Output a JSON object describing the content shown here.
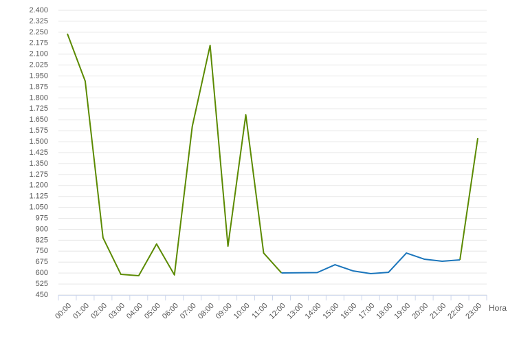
{
  "chart_data": {
    "type": "line",
    "x_label": "Hora",
    "categories": [
      "00:00",
      "01:00",
      "02:00",
      "03:00",
      "04:00",
      "05:00",
      "06:00",
      "07:00",
      "08:00",
      "09:00",
      "10:00",
      "11:00",
      "12:00",
      "13:00",
      "14:00",
      "15:00",
      "16:00",
      "17:00",
      "18:00",
      "19:00",
      "20:00",
      "21:00",
      "22:00",
      "23:00"
    ],
    "series": [
      {
        "color": "#5b8a00",
        "values": [
          2240,
          1915,
          841,
          591,
          582,
          799,
          587,
          1604,
          2160,
          784,
          1684,
          737,
          601,
          null,
          null,
          null,
          null,
          null,
          null,
          null,
          null,
          null,
          690,
          1524
        ]
      },
      {
        "color": "#1a75bb",
        "values": [
          null,
          null,
          null,
          null,
          null,
          null,
          null,
          null,
          null,
          null,
          null,
          null,
          601,
          602,
          603,
          657,
          615,
          596,
          605,
          737,
          695,
          681,
          690,
          null
        ]
      }
    ],
    "ylim": [
      450,
      2400
    ],
    "yticks": [
      450,
      525,
      600,
      675,
      750,
      825,
      900,
      975,
      {
        "value": 1050,
        "label": "1.050"
      },
      {
        "value": 1125,
        "label": "1.125"
      },
      {
        "value": 1200,
        "label": "1.200"
      },
      {
        "value": 1275,
        "label": "1.275"
      },
      {
        "value": 1350,
        "label": "1.350"
      },
      {
        "value": 1425,
        "label": "1.425"
      },
      {
        "value": 1500,
        "label": "1.500"
      },
      {
        "value": 1575,
        "label": "1.575"
      },
      {
        "value": 1650,
        "label": "1.650"
      },
      {
        "value": 1725,
        "label": "1.725"
      },
      {
        "value": 1800,
        "label": "1.800"
      },
      {
        "value": 1875,
        "label": "1.875"
      },
      {
        "value": 1950,
        "label": "1.950"
      },
      {
        "value": 2025,
        "label": "2.025"
      },
      {
        "value": 2100,
        "label": "2.100"
      },
      {
        "value": 2175,
        "label": "2.175"
      },
      {
        "value": 2250,
        "label": "2.250"
      },
      {
        "value": 2325,
        "label": "2.325"
      },
      {
        "value": 2400,
        "label": "2.400"
      }
    ],
    "grid": true
  }
}
